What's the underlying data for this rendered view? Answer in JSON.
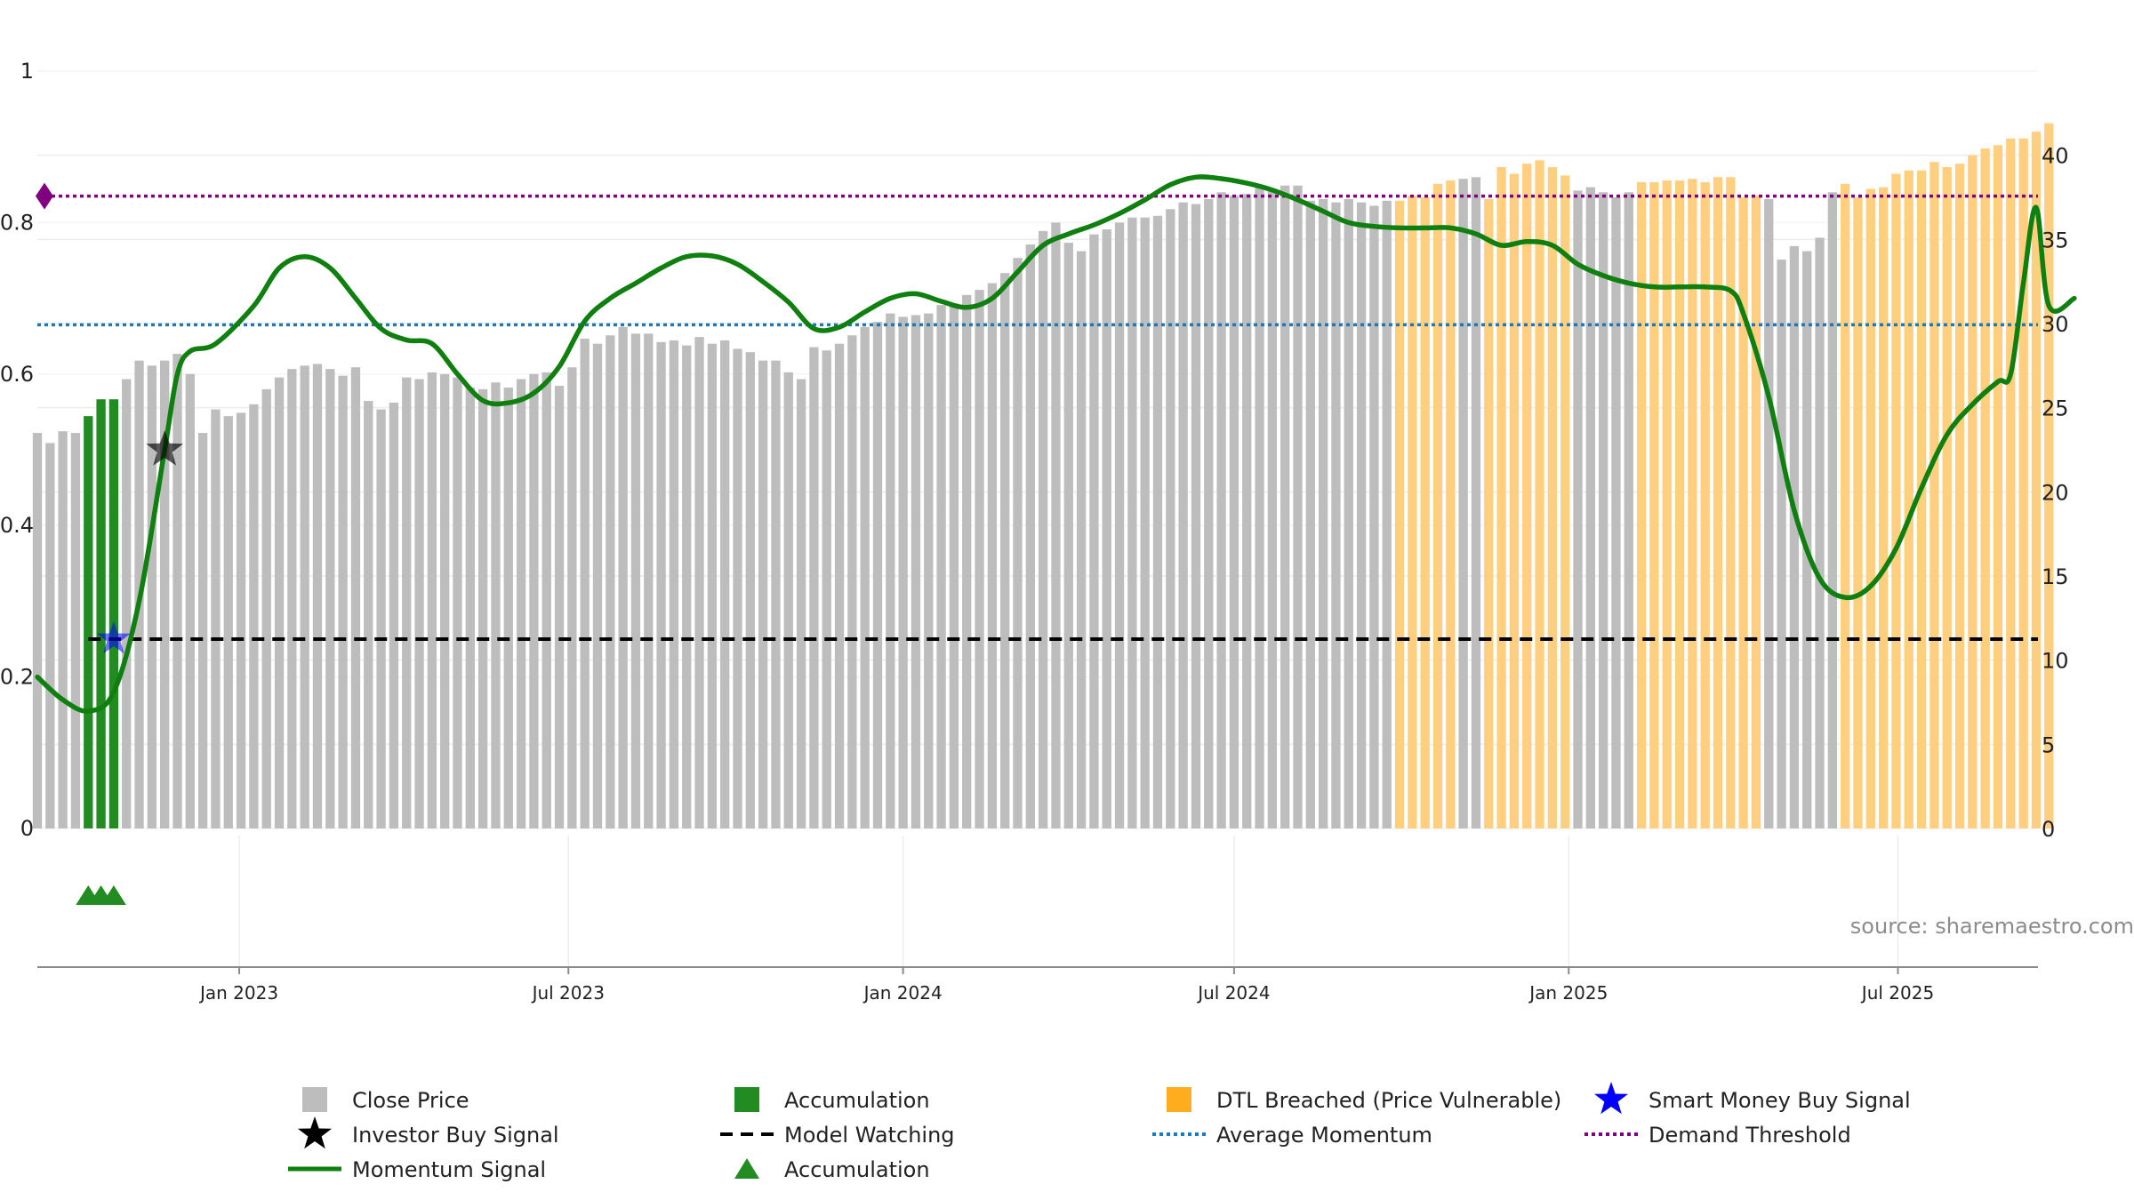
{
  "source": "source: sharemaestro.com",
  "chart_data": {
    "type": "bar",
    "left_axis": {
      "ylim": [
        0,
        1
      ],
      "ticks": [
        0,
        0.2,
        0.4,
        0.6,
        0.8,
        1
      ],
      "tick_labels": [
        "0",
        "0.2",
        "0.4",
        "0.6",
        "0.8",
        "1"
      ]
    },
    "right_axis": {
      "ylim": [
        0,
        45
      ],
      "ticks": [
        0,
        5,
        10,
        15,
        20,
        25,
        30,
        35,
        40
      ],
      "tick_labels": [
        "0",
        "5",
        "10",
        "15",
        "20",
        "25",
        "30",
        "35",
        "40"
      ]
    },
    "x_axis": {
      "range": [
        "2022-09-12",
        "2025-09-16"
      ],
      "ticks": [
        "2023-01-01",
        "2023-07-01",
        "2024-01-01",
        "2024-07-01",
        "2025-01-01",
        "2025-07-01"
      ],
      "tick_labels": [
        "Jan 2023",
        "Jul 2023",
        "Jan 2024",
        "Jul 2024",
        "Jan 2025",
        "Jul 2025"
      ]
    },
    "grid": true,
    "bars": {
      "start_date": "2022-09-12",
      "interval_days": 7,
      "colors": {
        "gray": "#bdbdbd",
        "green": "#228b22",
        "orange": "#ffcf80"
      },
      "values": [
        23.5,
        22.9,
        23.6,
        23.5,
        24.5,
        25.5,
        25.5,
        26.7,
        27.8,
        27.5,
        27.8,
        28.2,
        27.0,
        23.5,
        24.9,
        24.5,
        24.7,
        25.2,
        26.1,
        26.8,
        27.3,
        27.5,
        27.6,
        27.3,
        26.9,
        27.4,
        25.4,
        24.9,
        25.3,
        26.8,
        26.7,
        27.1,
        27.0,
        26.8,
        26.2,
        26.1,
        26.5,
        26.2,
        26.7,
        27.0,
        27.1,
        26.3,
        27.4,
        29.1,
        28.8,
        29.3,
        29.8,
        29.4,
        29.4,
        28.9,
        29.0,
        28.7,
        29.2,
        28.8,
        29.0,
        28.5,
        28.3,
        27.8,
        27.8,
        27.1,
        26.7,
        28.6,
        28.4,
        28.8,
        29.3,
        29.8,
        30.1,
        30.6,
        30.4,
        30.5,
        30.6,
        31.1,
        31.2,
        31.7,
        32.0,
        32.4,
        33.0,
        33.9,
        34.7,
        35.5,
        36.0,
        34.8,
        34.3,
        35.3,
        35.6,
        36.0,
        36.3,
        36.3,
        36.4,
        36.8,
        37.2,
        37.1,
        37.4,
        37.8,
        37.6,
        37.7,
        38.2,
        37.9,
        38.2,
        38.2,
        37.3,
        37.4,
        37.2,
        37.4,
        37.2,
        37.0,
        37.3,
        37.3,
        37.6,
        37.5,
        38.3,
        38.5,
        38.6,
        38.7,
        37.4,
        39.3,
        38.9,
        39.5,
        39.7,
        39.3,
        38.8,
        37.9,
        38.1,
        37.8,
        37.5,
        37.8,
        38.4,
        38.4,
        38.5,
        38.5,
        38.6,
        38.4,
        38.7,
        38.7,
        37.5,
        37.6,
        37.4,
        33.8,
        34.6,
        34.3,
        35.1,
        37.8,
        38.3,
        37.5,
        38.0,
        38.1,
        38.9,
        39.1,
        39.1,
        39.6,
        39.3,
        39.5,
        40.0,
        40.4,
        40.6,
        41.0,
        41.0,
        41.4,
        41.9
      ],
      "bar_colors": [
        "gray",
        "gray",
        "gray",
        "gray",
        "green",
        "green",
        "green",
        "gray",
        "gray",
        "gray",
        "gray",
        "gray",
        "gray",
        "gray",
        "gray",
        "gray",
        "gray",
        "gray",
        "gray",
        "gray",
        "gray",
        "gray",
        "gray",
        "gray",
        "gray",
        "gray",
        "gray",
        "gray",
        "gray",
        "gray",
        "gray",
        "gray",
        "gray",
        "gray",
        "gray",
        "gray",
        "gray",
        "gray",
        "gray",
        "gray",
        "gray",
        "gray",
        "gray",
        "gray",
        "gray",
        "gray",
        "gray",
        "gray",
        "gray",
        "gray",
        "gray",
        "gray",
        "gray",
        "gray",
        "gray",
        "gray",
        "gray",
        "gray",
        "gray",
        "gray",
        "gray",
        "gray",
        "gray",
        "gray",
        "gray",
        "gray",
        "gray",
        "gray",
        "gray",
        "gray",
        "gray",
        "gray",
        "gray",
        "gray",
        "gray",
        "gray",
        "gray",
        "gray",
        "gray",
        "gray",
        "gray",
        "gray",
        "gray",
        "gray",
        "gray",
        "gray",
        "gray",
        "gray",
        "gray",
        "gray",
        "gray",
        "gray",
        "gray",
        "gray",
        "gray",
        "gray",
        "gray",
        "gray",
        "gray",
        "gray",
        "gray",
        "gray",
        "gray",
        "gray",
        "gray",
        "gray",
        "gray",
        "orange",
        "orange",
        "orange",
        "orange",
        "orange",
        "gray",
        "gray",
        "orange",
        "orange",
        "orange",
        "orange",
        "orange",
        "orange",
        "orange",
        "gray",
        "gray",
        "gray",
        "gray",
        "gray",
        "orange",
        "orange",
        "orange",
        "orange",
        "orange",
        "orange",
        "orange",
        "orange",
        "orange",
        "orange",
        "gray",
        "gray",
        "gray",
        "gray",
        "gray",
        "gray",
        "orange",
        "orange",
        "orange",
        "orange",
        "orange",
        "orange",
        "orange",
        "orange",
        "orange",
        "orange",
        "orange",
        "orange",
        "orange",
        "orange",
        "orange",
        "orange",
        "orange",
        "orange",
        "orange"
      ]
    },
    "momentum_signal": {
      "color": "#0f7f0f",
      "points": [
        [
          "2022-09-12",
          0.2
        ],
        [
          "2022-09-26",
          0.17
        ],
        [
          "2022-10-10",
          0.155
        ],
        [
          "2022-10-24",
          0.18
        ],
        [
          "2022-11-07",
          0.3
        ],
        [
          "2022-11-21",
          0.5
        ],
        [
          "2022-11-28",
          0.6
        ],
        [
          "2022-12-05",
          0.63
        ],
        [
          "2022-12-19",
          0.64
        ],
        [
          "2023-01-09",
          0.69
        ],
        [
          "2023-01-23",
          0.74
        ],
        [
          "2023-02-06",
          0.755
        ],
        [
          "2023-02-20",
          0.74
        ],
        [
          "2023-03-06",
          0.7
        ],
        [
          "2023-03-20",
          0.66
        ],
        [
          "2023-04-03",
          0.645
        ],
        [
          "2023-04-17",
          0.64
        ],
        [
          "2023-05-01",
          0.6
        ],
        [
          "2023-05-15",
          0.565
        ],
        [
          "2023-05-29",
          0.562
        ],
        [
          "2023-06-12",
          0.575
        ],
        [
          "2023-06-26",
          0.61
        ],
        [
          "2023-07-10",
          0.67
        ],
        [
          "2023-07-24",
          0.7
        ],
        [
          "2023-08-07",
          0.72
        ],
        [
          "2023-08-21",
          0.74
        ],
        [
          "2023-09-04",
          0.755
        ],
        [
          "2023-09-18",
          0.756
        ],
        [
          "2023-10-02",
          0.745
        ],
        [
          "2023-10-16",
          0.722
        ],
        [
          "2023-10-30",
          0.695
        ],
        [
          "2023-11-13",
          0.66
        ],
        [
          "2023-11-27",
          0.662
        ],
        [
          "2023-12-11",
          0.682
        ],
        [
          "2023-12-25",
          0.7
        ],
        [
          "2024-01-08",
          0.706
        ],
        [
          "2024-01-22",
          0.696
        ],
        [
          "2024-02-05",
          0.688
        ],
        [
          "2024-02-19",
          0.7
        ],
        [
          "2024-03-04",
          0.735
        ],
        [
          "2024-03-18",
          0.77
        ],
        [
          "2024-04-01",
          0.785
        ],
        [
          "2024-04-15",
          0.797
        ],
        [
          "2024-04-29",
          0.812
        ],
        [
          "2024-05-13",
          0.83
        ],
        [
          "2024-05-27",
          0.85
        ],
        [
          "2024-06-10",
          0.86
        ],
        [
          "2024-06-24",
          0.858
        ],
        [
          "2024-07-08",
          0.852
        ],
        [
          "2024-07-22",
          0.843
        ],
        [
          "2024-08-05",
          0.83
        ],
        [
          "2024-08-19",
          0.815
        ],
        [
          "2024-09-02",
          0.8
        ],
        [
          "2024-09-16",
          0.795
        ],
        [
          "2024-09-30",
          0.793
        ],
        [
          "2024-10-14",
          0.793
        ],
        [
          "2024-10-28",
          0.793
        ],
        [
          "2024-11-11",
          0.785
        ],
        [
          "2024-11-25",
          0.77
        ],
        [
          "2024-12-09",
          0.775
        ],
        [
          "2024-12-23",
          0.77
        ],
        [
          "2025-01-06",
          0.745
        ],
        [
          "2025-01-20",
          0.73
        ],
        [
          "2025-02-03",
          0.72
        ],
        [
          "2025-02-17",
          0.715
        ],
        [
          "2025-03-03",
          0.715
        ],
        [
          "2025-03-17",
          0.715
        ],
        [
          "2025-03-31",
          0.71
        ],
        [
          "2025-04-07",
          0.68
        ],
        [
          "2025-04-21",
          0.57
        ],
        [
          "2025-05-05",
          0.42
        ],
        [
          "2025-05-19",
          0.33
        ],
        [
          "2025-06-02",
          0.305
        ],
        [
          "2025-06-16",
          0.32
        ],
        [
          "2025-06-30",
          0.37
        ],
        [
          "2025-07-14",
          0.45
        ],
        [
          "2025-07-28",
          0.52
        ],
        [
          "2025-08-11",
          0.56
        ],
        [
          "2025-08-25",
          0.59
        ],
        [
          "2025-09-01",
          0.6
        ],
        [
          "2025-09-08",
          0.72
        ],
        [
          "2025-09-15",
          0.82
        ],
        [
          "2025-09-22",
          0.69
        ],
        [
          "2025-10-06",
          0.7
        ]
      ]
    },
    "reference_lines": [
      {
        "name": "Demand Threshold",
        "value": 0.835,
        "color": "#800080",
        "style": "dotted"
      },
      {
        "name": "Average Momentum",
        "value": 0.665,
        "color": "#1f77b4",
        "style": "dotted"
      },
      {
        "name": "Model Watching",
        "value": 0.25,
        "color": "#000000",
        "style": "dashed"
      }
    ],
    "markers": {
      "investor_buy_signal": {
        "date": "2022-11-21",
        "value": 0.5,
        "color": "#000000"
      },
      "smart_money_buy_signal": {
        "date": "2022-10-24",
        "value": 0.25,
        "color": "#0000ff"
      },
      "demand_threshold_diamond": {
        "date": "2022-09-12",
        "value": 0.835,
        "color": "#800080"
      },
      "accumulation_triangles": {
        "dates": [
          "2022-10-10",
          "2022-10-17",
          "2022-10-24"
        ],
        "color": "#228b22"
      }
    },
    "legend": {
      "placement": "bottom",
      "entries": [
        {
          "label": "Close Price",
          "symbol": "square",
          "color": "#bdbdbd"
        },
        {
          "label": "Accumulation",
          "symbol": "square",
          "color": "#228b22"
        },
        {
          "label": "DTL Breached (Price Vulnerable)",
          "symbol": "square",
          "color": "#ffad1f"
        },
        {
          "label": "Smart Money Buy Signal",
          "symbol": "star",
          "color": "#0000ff"
        },
        {
          "label": "Investor Buy Signal",
          "symbol": "star",
          "color": "#000000"
        },
        {
          "label": "Model Watching",
          "symbol": "dashed-line",
          "color": "#000000"
        },
        {
          "label": "Average Momentum",
          "symbol": "dotted-line",
          "color": "#1f77b4"
        },
        {
          "label": "Demand Threshold",
          "symbol": "dotted-line",
          "color": "#800080"
        },
        {
          "label": "Momentum Signal",
          "symbol": "solid-line",
          "color": "#0f7f0f"
        },
        {
          "label": "Accumulation",
          "symbol": "triangle",
          "color": "#228b22"
        }
      ]
    }
  }
}
